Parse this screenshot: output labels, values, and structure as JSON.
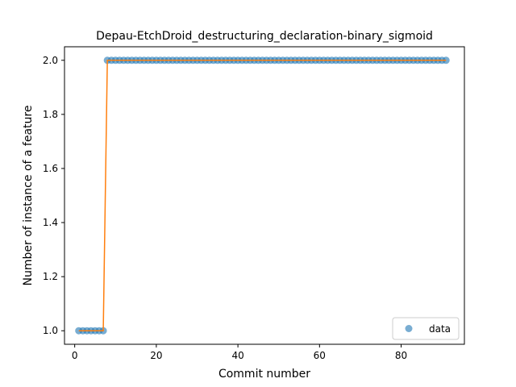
{
  "chart_data": {
    "type": "scatter",
    "title": "Depau-EtchDroid_destructuring_declaration-binary_sigmoid",
    "xlabel": "Commit number",
    "ylabel": "Number of instance of a feature",
    "xlim": [
      -2.5,
      95.5
    ],
    "ylim": [
      0.95,
      2.05
    ],
    "xticks": [
      0,
      20,
      40,
      60,
      80
    ],
    "yticks": [
      1.0,
      1.2,
      1.4,
      1.6,
      1.8,
      2.0
    ],
    "xtick_labels": [
      "0",
      "20",
      "40",
      "60",
      "80"
    ],
    "ytick_labels": [
      "1.0",
      "1.2",
      "1.4",
      "1.6",
      "1.8",
      "2.0"
    ],
    "legend": {
      "entries": [
        "data"
      ],
      "placement": "lower-right"
    },
    "grid": false,
    "colors": {
      "data": "#1f77b4",
      "fit": "#ff7f0e"
    },
    "series": [
      {
        "name": "data",
        "kind": "scatter",
        "x": [
          1,
          2,
          3,
          4,
          5,
          6,
          7,
          8,
          9,
          10,
          11,
          12,
          13,
          14,
          15,
          16,
          17,
          18,
          19,
          20,
          21,
          22,
          23,
          24,
          25,
          26,
          27,
          28,
          29,
          30,
          31,
          32,
          33,
          34,
          35,
          36,
          37,
          38,
          39,
          40,
          41,
          42,
          43,
          44,
          45,
          46,
          47,
          48,
          49,
          50,
          51,
          52,
          53,
          54,
          55,
          56,
          57,
          58,
          59,
          60,
          61,
          62,
          63,
          64,
          65,
          66,
          67,
          68,
          69,
          70,
          71,
          72,
          73,
          74,
          75,
          76,
          77,
          78,
          79,
          80,
          81,
          82,
          83,
          84,
          85,
          86,
          87,
          88,
          89,
          90,
          91
        ],
        "y": [
          1,
          1,
          1,
          1,
          1,
          1,
          1,
          2,
          2,
          2,
          2,
          2,
          2,
          2,
          2,
          2,
          2,
          2,
          2,
          2,
          2,
          2,
          2,
          2,
          2,
          2,
          2,
          2,
          2,
          2,
          2,
          2,
          2,
          2,
          2,
          2,
          2,
          2,
          2,
          2,
          2,
          2,
          2,
          2,
          2,
          2,
          2,
          2,
          2,
          2,
          2,
          2,
          2,
          2,
          2,
          2,
          2,
          2,
          2,
          2,
          2,
          2,
          2,
          2,
          2,
          2,
          2,
          2,
          2,
          2,
          2,
          2,
          2,
          2,
          2,
          2,
          2,
          2,
          2,
          2,
          2,
          2,
          2,
          2,
          2,
          2,
          2,
          2,
          2,
          2,
          2
        ]
      },
      {
        "kind": "line",
        "x": [
          1,
          2,
          3,
          4,
          5,
          6,
          7,
          8,
          9,
          10,
          11,
          12,
          13,
          14,
          15,
          16,
          17,
          18,
          19,
          20,
          21,
          22,
          23,
          24,
          25,
          26,
          27,
          28,
          29,
          30,
          31,
          32,
          33,
          34,
          35,
          36,
          37,
          38,
          39,
          40,
          41,
          42,
          43,
          44,
          45,
          46,
          47,
          48,
          49,
          50,
          51,
          52,
          53,
          54,
          55,
          56,
          57,
          58,
          59,
          60,
          61,
          62,
          63,
          64,
          65,
          66,
          67,
          68,
          69,
          70,
          71,
          72,
          73,
          74,
          75,
          76,
          77,
          78,
          79,
          80,
          81,
          82,
          83,
          84,
          85,
          86,
          87,
          88,
          89,
          90,
          91
        ],
        "y": [
          1,
          1,
          1,
          1,
          1,
          1,
          1,
          2,
          2,
          2,
          2,
          2,
          2,
          2,
          2,
          2,
          2,
          2,
          2,
          2,
          2,
          2,
          2,
          2,
          2,
          2,
          2,
          2,
          2,
          2,
          2,
          2,
          2,
          2,
          2,
          2,
          2,
          2,
          2,
          2,
          2,
          2,
          2,
          2,
          2,
          2,
          2,
          2,
          2,
          2,
          2,
          2,
          2,
          2,
          2,
          2,
          2,
          2,
          2,
          2,
          2,
          2,
          2,
          2,
          2,
          2,
          2,
          2,
          2,
          2,
          2,
          2,
          2,
          2,
          2,
          2,
          2,
          2,
          2,
          2,
          2,
          2,
          2,
          2,
          2,
          2,
          2,
          2,
          2,
          2,
          2
        ]
      }
    ]
  }
}
